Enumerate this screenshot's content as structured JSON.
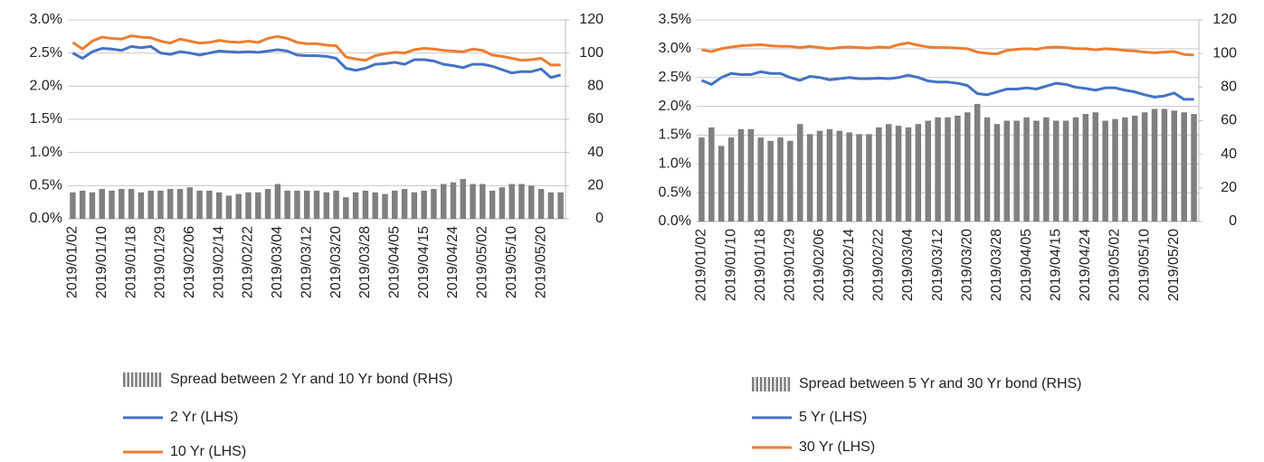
{
  "chart_data": [
    {
      "type": "combo",
      "legend": "bottom",
      "grid": true,
      "categories": [
        "2019/01/02",
        null,
        null,
        "2019/01/10",
        null,
        null,
        "2019/01/18",
        null,
        null,
        "2019/01/29",
        null,
        null,
        "2019/02/06",
        null,
        null,
        "2019/02/14",
        null,
        null,
        "2019/02/22",
        null,
        null,
        "2019/03/04",
        null,
        null,
        "2019/03/12",
        null,
        null,
        "2019/03/20",
        null,
        null,
        "2019/03/28",
        null,
        null,
        "2019/04/05",
        null,
        null,
        "2019/04/15",
        null,
        null,
        "2019/04/24",
        null,
        null,
        "2019/05/02",
        null,
        null,
        "2019/05/10",
        null,
        null,
        "2019/05/20",
        null,
        null
      ],
      "ylim": [
        0,
        3.0
      ],
      "yticks": [
        {
          "value": 0,
          "label": "0.0%"
        },
        {
          "value": 0.5,
          "label": "0.5%"
        },
        {
          "value": 1.0,
          "label": "1.0%"
        },
        {
          "value": 1.5,
          "label": "1.5%"
        },
        {
          "value": 2.0,
          "label": "2.0%"
        },
        {
          "value": 2.5,
          "label": "2.5%"
        },
        {
          "value": 3.0,
          "label": "3.0%"
        }
      ],
      "y2lim": [
        0,
        120
      ],
      "y2ticks": [
        0,
        20,
        40,
        60,
        80,
        100,
        120
      ],
      "series": [
        {
          "name": "Spread between 2 Yr and 10 Yr bond (RHS)",
          "type": "bar",
          "axis": "y2",
          "color": "#808080",
          "values": [
            16,
            17,
            16,
            18,
            17,
            18,
            18,
            16,
            17,
            17,
            18,
            18,
            19,
            17,
            17,
            16,
            14,
            15,
            16,
            16,
            18,
            21,
            17,
            17,
            17,
            17,
            16,
            17,
            13,
            16,
            17,
            16,
            15,
            17,
            18,
            16,
            17,
            18,
            21,
            22,
            24,
            21,
            21,
            17,
            19,
            21,
            21,
            20,
            18,
            16,
            16
          ]
        },
        {
          "name": "2 Yr (LHS)",
          "type": "line",
          "color": "#4472c4",
          "values": [
            2.5,
            2.42,
            2.52,
            2.57,
            2.56,
            2.54,
            2.6,
            2.58,
            2.6,
            2.5,
            2.48,
            2.52,
            2.5,
            2.47,
            2.5,
            2.53,
            2.52,
            2.51,
            2.52,
            2.51,
            2.53,
            2.55,
            2.53,
            2.47,
            2.46,
            2.46,
            2.45,
            2.42,
            2.27,
            2.24,
            2.27,
            2.33,
            2.34,
            2.36,
            2.33,
            2.4,
            2.4,
            2.38,
            2.33,
            2.31,
            2.28,
            2.33,
            2.33,
            2.3,
            2.25,
            2.2,
            2.22,
            2.22,
            2.26,
            2.13,
            2.17
          ]
        },
        {
          "name": "10 Yr (LHS)",
          "type": "line",
          "color": "#ed7d31",
          "values": [
            2.66,
            2.56,
            2.68,
            2.74,
            2.72,
            2.71,
            2.76,
            2.74,
            2.73,
            2.68,
            2.65,
            2.71,
            2.68,
            2.65,
            2.66,
            2.69,
            2.67,
            2.66,
            2.68,
            2.66,
            2.72,
            2.75,
            2.72,
            2.66,
            2.64,
            2.64,
            2.62,
            2.61,
            2.44,
            2.41,
            2.39,
            2.46,
            2.49,
            2.51,
            2.5,
            2.55,
            2.57,
            2.56,
            2.54,
            2.53,
            2.52,
            2.56,
            2.54,
            2.47,
            2.45,
            2.42,
            2.39,
            2.4,
            2.42,
            2.32,
            2.32
          ]
        }
      ]
    },
    {
      "type": "combo",
      "legend": "bottom",
      "grid": true,
      "categories": [
        "2019/01/02",
        null,
        null,
        "2019/01/10",
        null,
        null,
        "2019/01/18",
        null,
        null,
        "2019/01/29",
        null,
        null,
        "2019/02/06",
        null,
        null,
        "2019/02/14",
        null,
        null,
        "2019/02/22",
        null,
        null,
        "2019/03/04",
        null,
        null,
        "2019/03/12",
        null,
        null,
        "2019/03/20",
        null,
        null,
        "2019/03/28",
        null,
        null,
        "2019/04/05",
        null,
        null,
        "2019/04/15",
        null,
        null,
        "2019/04/24",
        null,
        null,
        "2019/05/02",
        null,
        null,
        "2019/05/10",
        null,
        null,
        "2019/05/20",
        null,
        null
      ],
      "ylim": [
        0,
        3.5
      ],
      "yticks": [
        {
          "value": 0,
          "label": "0.0%"
        },
        {
          "value": 0.5,
          "label": "0.5%"
        },
        {
          "value": 1.0,
          "label": "1.0%"
        },
        {
          "value": 1.5,
          "label": "1.5%"
        },
        {
          "value": 2.0,
          "label": "2.0%"
        },
        {
          "value": 2.5,
          "label": "2.5%"
        },
        {
          "value": 3.0,
          "label": "3.0%"
        },
        {
          "value": 3.5,
          "label": "3.5%"
        }
      ],
      "y2lim": [
        0,
        120
      ],
      "y2ticks": [
        0,
        20,
        40,
        60,
        80,
        100,
        120
      ],
      "series": [
        {
          "name": "Spread between 5 Yr and 30 Yr bond (RHS)",
          "type": "bar",
          "axis": "y2",
          "color": "#808080",
          "values": [
            50,
            56,
            45,
            50,
            55,
            55,
            50,
            48,
            50,
            48,
            58,
            52,
            54,
            55,
            54,
            53,
            52,
            52,
            56,
            58,
            57,
            56,
            58,
            60,
            62,
            62,
            63,
            65,
            70,
            62,
            58,
            60,
            60,
            62,
            60,
            62,
            60,
            60,
            62,
            64,
            65,
            60,
            61,
            62,
            63,
            65,
            67,
            67,
            66,
            65,
            64
          ]
        },
        {
          "name": "5 Yr (LHS)",
          "type": "line",
          "color": "#4472c4",
          "values": [
            2.45,
            2.38,
            2.5,
            2.57,
            2.55,
            2.55,
            2.6,
            2.57,
            2.57,
            2.5,
            2.45,
            2.52,
            2.5,
            2.46,
            2.48,
            2.5,
            2.48,
            2.48,
            2.49,
            2.48,
            2.5,
            2.54,
            2.5,
            2.44,
            2.42,
            2.42,
            2.4,
            2.36,
            2.22,
            2.2,
            2.25,
            2.3,
            2.3,
            2.32,
            2.3,
            2.35,
            2.4,
            2.38,
            2.33,
            2.31,
            2.28,
            2.32,
            2.32,
            2.28,
            2.25,
            2.2,
            2.16,
            2.18,
            2.23,
            2.12,
            2.12
          ]
        },
        {
          "name": "30 Yr (LHS)",
          "type": "line",
          "color": "#ed7d31",
          "values": [
            2.98,
            2.95,
            3.0,
            3.03,
            3.05,
            3.06,
            3.07,
            3.05,
            3.04,
            3.04,
            3.02,
            3.04,
            3.02,
            3.0,
            3.02,
            3.03,
            3.02,
            3.01,
            3.03,
            3.02,
            3.07,
            3.1,
            3.06,
            3.03,
            3.02,
            3.02,
            3.01,
            3.0,
            2.94,
            2.92,
            2.91,
            2.97,
            2.99,
            3.0,
            2.99,
            3.02,
            3.03,
            3.02,
            3.0,
            3.0,
            2.98,
            3.0,
            2.99,
            2.97,
            2.96,
            2.94,
            2.93,
            2.94,
            2.95,
            2.9,
            2.89
          ]
        }
      ]
    }
  ]
}
